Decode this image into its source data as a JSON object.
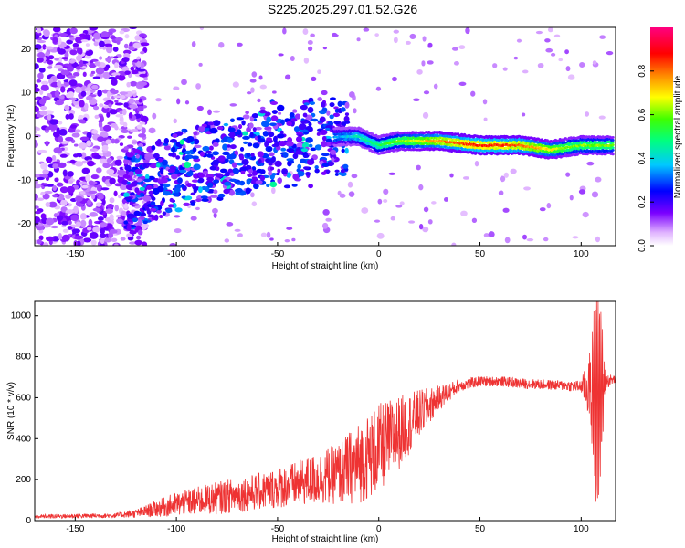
{
  "title": "S225.2025.297.01.52.G26",
  "colors": {
    "snr_line": "#ee3333",
    "axis": "#000000",
    "background": "#ffffff"
  },
  "chart_data": [
    {
      "type": "heatmap",
      "title": "S225.2025.297.01.52.G26",
      "xlabel": "Height of straight line (km)",
      "ylabel": "Frequency (Hz)",
      "xlim": [
        -170,
        117
      ],
      "ylim": [
        -25,
        25
      ],
      "xticks": [
        -150,
        -100,
        -50,
        0,
        50,
        100
      ],
      "yticks": [
        -20,
        -10,
        0,
        10,
        20
      ],
      "colorbar": {
        "label": "Normalized spectral amplitude",
        "range": [
          0,
          1
        ],
        "ticks": [
          "0.0",
          "0.2",
          "0.4",
          "0.6",
          "0.8"
        ]
      },
      "ridge": {
        "description_points_x": [
          -120,
          -100,
          -75,
          -50,
          -30,
          -20,
          -10,
          0,
          10,
          30,
          50,
          70,
          85,
          100,
          110
        ],
        "description_points_freq": [
          -12,
          -8,
          -5,
          -3,
          -1,
          0,
          0,
          -2,
          -1,
          -1,
          -2,
          -2,
          -3,
          -2,
          -2
        ],
        "peak_amplitude": 0.9
      }
    },
    {
      "type": "line",
      "title": "",
      "xlabel": "Height of straight line (km)",
      "ylabel": "SNR (10 * v/v)",
      "xlim": [
        -170,
        117
      ],
      "ylim": [
        0,
        1070
      ],
      "xticks": [
        -150,
        -100,
        -50,
        0,
        50,
        100
      ],
      "yticks": [
        0,
        200,
        400,
        600,
        800,
        1000
      ],
      "envelope_x": [
        -170,
        -130,
        -120,
        -100,
        -80,
        -60,
        -40,
        -20,
        -10,
        0,
        10,
        20,
        30,
        40,
        50,
        60,
        70,
        80,
        90,
        100,
        105,
        108,
        110,
        112,
        117
      ],
      "envelope_mean": [
        20,
        25,
        35,
        80,
        110,
        140,
        180,
        230,
        280,
        350,
        430,
        520,
        600,
        660,
        680,
        680,
        670,
        665,
        660,
        655,
        650,
        600,
        650,
        680,
        690
      ],
      "envelope_spread": [
        10,
        12,
        20,
        60,
        80,
        90,
        110,
        150,
        200,
        220,
        180,
        120,
        60,
        30,
        25,
        25,
        25,
        25,
        25,
        30,
        200,
        500,
        300,
        40,
        20
      ]
    }
  ]
}
